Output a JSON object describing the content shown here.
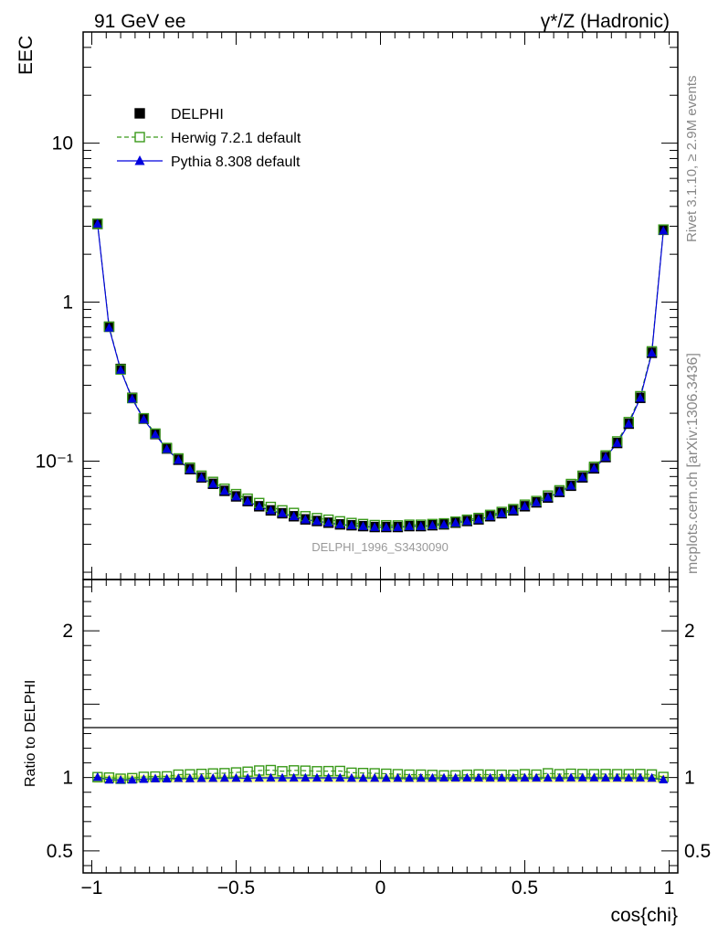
{
  "header": {
    "left_label": "91 GeV ee",
    "right_label": "γ*/Z (Hadronic)"
  },
  "side_labels": {
    "rivet": "Rivet 3.1.10, ≥ 2.9M events",
    "mcplots": "mcplots.cern.ch [arXiv:1306.3436]"
  },
  "watermark": "DELPHI_1996_S3430090",
  "colors": {
    "data": "#000000",
    "herwig": "#3a9a1a",
    "pythia": "#0000dd",
    "band_outer": "#ffff66",
    "band_inner": "#99ee66"
  },
  "chart_data": [
    {
      "type": "scatter",
      "panel": "main",
      "ylabel": "EEC",
      "ylog": true,
      "xlim": [
        -1.03,
        1.03
      ],
      "ylim": [
        0.018,
        50
      ],
      "ytick_labels": [
        "10⁻¹",
        "1",
        "10"
      ],
      "ytick_values": [
        0.1,
        1,
        10
      ],
      "legend_position": "top-left",
      "x": [
        -0.98,
        -0.94,
        -0.9,
        -0.86,
        -0.82,
        -0.78,
        -0.74,
        -0.7,
        -0.66,
        -0.62,
        -0.58,
        -0.54,
        -0.5,
        -0.46,
        -0.42,
        -0.38,
        -0.34,
        -0.3,
        -0.26,
        -0.22,
        -0.18,
        -0.14,
        -0.1,
        -0.06,
        -0.02,
        0.02,
        0.06,
        0.1,
        0.14,
        0.18,
        0.22,
        0.26,
        0.3,
        0.34,
        0.38,
        0.42,
        0.46,
        0.5,
        0.54,
        0.58,
        0.62,
        0.66,
        0.7,
        0.74,
        0.78,
        0.82,
        0.86,
        0.9,
        0.94,
        0.98
      ],
      "series": [
        {
          "name": "DELPHI",
          "marker": "filled-square",
          "values": [
            3.1,
            0.7,
            0.38,
            0.25,
            0.185,
            0.148,
            0.12,
            0.102,
            0.089,
            0.079,
            0.072,
            0.065,
            0.06,
            0.056,
            0.052,
            0.049,
            0.047,
            0.045,
            0.043,
            0.042,
            0.041,
            0.04,
            0.0395,
            0.039,
            0.0385,
            0.0385,
            0.0385,
            0.039,
            0.039,
            0.0395,
            0.04,
            0.041,
            0.042,
            0.043,
            0.045,
            0.047,
            0.049,
            0.052,
            0.055,
            0.059,
            0.064,
            0.07,
            0.079,
            0.09,
            0.106,
            0.13,
            0.172,
            0.25,
            0.48,
            2.85
          ]
        },
        {
          "name": "Herwig 7.2.1 default",
          "marker": "open-square",
          "line": "dashed",
          "values": [
            3.11,
            0.7,
            0.377,
            0.249,
            0.186,
            0.149,
            0.121,
            0.104,
            0.091,
            0.081,
            0.074,
            0.067,
            0.062,
            0.058,
            0.0545,
            0.0515,
            0.049,
            0.0472,
            0.045,
            0.0438,
            0.0428,
            0.0418,
            0.0408,
            0.0402,
            0.0396,
            0.0395,
            0.0394,
            0.0398,
            0.0398,
            0.0402,
            0.0406,
            0.0416,
            0.0428,
            0.0439,
            0.0459,
            0.0479,
            0.0499,
            0.0532,
            0.0561,
            0.0607,
            0.0655,
            0.0718,
            0.0809,
            0.0921,
            0.1085,
            0.133,
            0.176,
            0.256,
            0.49,
            2.86
          ]
        },
        {
          "name": "Pythia 8.308 default",
          "marker": "filled-triangle",
          "line": "solid",
          "values": [
            3.11,
            0.689,
            0.374,
            0.246,
            0.183,
            0.147,
            0.119,
            0.1015,
            0.0885,
            0.0786,
            0.0717,
            0.0648,
            0.0598,
            0.0558,
            0.0519,
            0.0489,
            0.0469,
            0.0449,
            0.0429,
            0.0419,
            0.0409,
            0.0399,
            0.0394,
            0.0389,
            0.0384,
            0.0384,
            0.0384,
            0.0389,
            0.0389,
            0.0394,
            0.0399,
            0.0409,
            0.0419,
            0.0429,
            0.0449,
            0.0469,
            0.0489,
            0.0519,
            0.0549,
            0.0589,
            0.0639,
            0.0699,
            0.0789,
            0.0899,
            0.1058,
            0.1297,
            0.1716,
            0.2494,
            0.4786,
            2.81
          ]
        }
      ]
    },
    {
      "type": "line",
      "panel": "ratio",
      "ylabel": "Ratio to DELPHI",
      "xlabel": "cos{chi}",
      "xlim": [
        -1.03,
        1.03
      ],
      "ylim": [
        0.35,
        2.35
      ],
      "xtick_labels": [
        "−1",
        "−0.5",
        "0",
        "0.5",
        "1"
      ],
      "xtick_values": [
        -1,
        -0.5,
        0,
        0.5,
        1
      ],
      "ytick_labels": [
        "0.5",
        "1",
        "2"
      ],
      "ytick_values": [
        0.5,
        1,
        2
      ],
      "series": [
        {
          "name": "Herwig 7.2.1 default",
          "values": [
            1.003,
            1.0,
            0.992,
            0.996,
            1.005,
            1.007,
            1.008,
            1.02,
            1.022,
            1.025,
            1.028,
            1.03,
            1.035,
            1.04,
            1.048,
            1.051,
            1.043,
            1.049,
            1.047,
            1.043,
            1.044,
            1.045,
            1.033,
            1.031,
            1.029,
            1.026,
            1.023,
            1.02,
            1.02,
            1.018,
            1.015,
            1.015,
            1.019,
            1.021,
            1.02,
            1.019,
            1.018,
            1.023,
            1.02,
            1.029,
            1.023,
            1.026,
            1.024,
            1.023,
            1.024,
            1.023,
            1.023,
            1.024,
            1.021,
            1.004
          ]
        },
        {
          "name": "Pythia 8.308 default",
          "values": [
            1.003,
            0.984,
            0.984,
            0.984,
            0.989,
            0.993,
            0.992,
            0.995,
            0.994,
            0.995,
            0.996,
            0.997,
            0.997,
            0.996,
            0.998,
            0.998,
            0.998,
            0.998,
            0.998,
            0.998,
            0.998,
            0.998,
            0.997,
            0.997,
            0.997,
            0.997,
            0.997,
            0.997,
            0.997,
            0.997,
            0.998,
            0.998,
            0.998,
            0.998,
            0.998,
            0.998,
            0.998,
            0.998,
            0.998,
            0.998,
            0.998,
            0.999,
            0.999,
            0.999,
            0.998,
            0.998,
            0.998,
            0.998,
            0.997,
            0.986
          ]
        }
      ]
    }
  ]
}
